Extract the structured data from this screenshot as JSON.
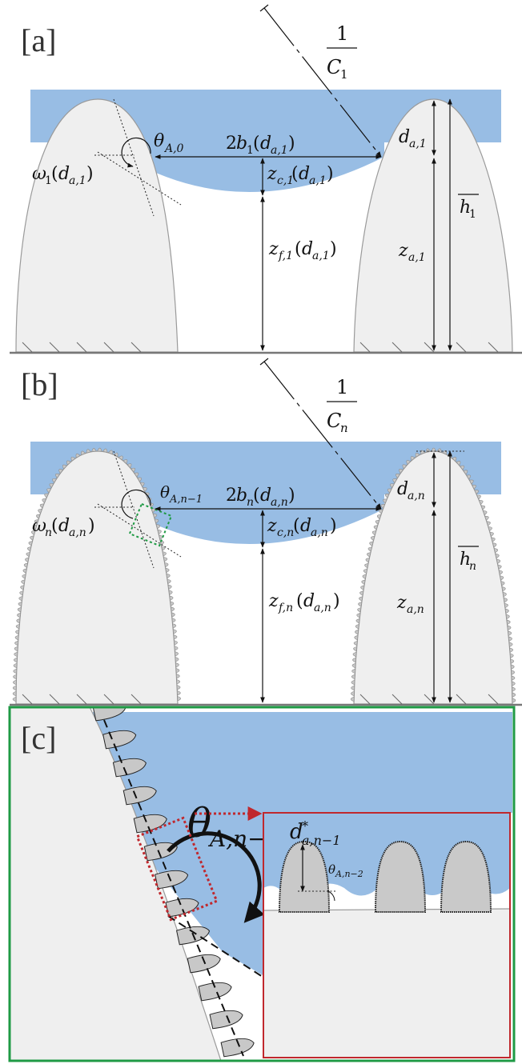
{
  "panels": {
    "a": {
      "label": "[a]",
      "curvature": {
        "num": "1",
        "sym": "C",
        "sub": "1"
      },
      "contact_angle": {
        "sym": "θ",
        "sub": "A,0"
      },
      "width": {
        "text": "2",
        "sym": "b",
        "sub": "1",
        "arg_sym": "d",
        "arg_sub": "a,1"
      },
      "pillar_angle": {
        "sym": "ω",
        "sub": "1",
        "arg_sym": "d",
        "arg_sub": "a,1"
      },
      "depth": {
        "sym": "d",
        "sub": "a,1"
      },
      "meniscus_depth": {
        "sym": "z",
        "sub": "c,1",
        "arg_sym": "d",
        "arg_sub": "a,1"
      },
      "free_height": {
        "sym": "z",
        "sub": "f,1",
        "arg_sym": "d",
        "arg_sub": "a,1"
      },
      "air_height": {
        "sym": "z",
        "sub": "a,1"
      },
      "mean_height": {
        "sym": "h",
        "sub": "1"
      }
    },
    "b": {
      "label": "[b]",
      "curvature": {
        "num": "1",
        "sym": "C",
        "sub": "n"
      },
      "contact_angle": {
        "sym": "θ",
        "sub": "A,n−1"
      },
      "width": {
        "text": "2",
        "sym": "b",
        "sub": "n",
        "arg_sym": "d",
        "arg_sub": "a,n"
      },
      "pillar_angle": {
        "sym": "ω",
        "sub": "n",
        "arg_sym": "d",
        "arg_sub": "a,n"
      },
      "depth": {
        "sym": "d",
        "sub": "a,n"
      },
      "meniscus_depth": {
        "sym": "z",
        "sub": "c,n",
        "arg_sym": "d",
        "arg_sub": "a,n"
      },
      "free_height": {
        "sym": "z",
        "sub": "f,n",
        "arg_sym": "d",
        "arg_sub": "a,n"
      },
      "air_height": {
        "sym": "z",
        "sub": "a,n"
      },
      "mean_height": {
        "sym": "h",
        "sub": "n"
      }
    },
    "c": {
      "label": "[c]",
      "contact_angle": {
        "sym": "θ",
        "sub": "A,n−1"
      },
      "inset_depth": {
        "sym": "d",
        "sup": "*",
        "sub": "a,n−1"
      },
      "inset_angle": {
        "sym": "θ",
        "sub": "A,n−2"
      }
    }
  },
  "colors": {
    "liquid": "#98bde4",
    "solid": "#efefef",
    "solid_outline": "#9a9a9a",
    "bump": "#c8c8c8",
    "green_frame": "#1f9a45",
    "green_dash": "#1f9a45",
    "red_frame": "#c0282d",
    "red_dash": "#c0282d",
    "ink": "#111111"
  }
}
